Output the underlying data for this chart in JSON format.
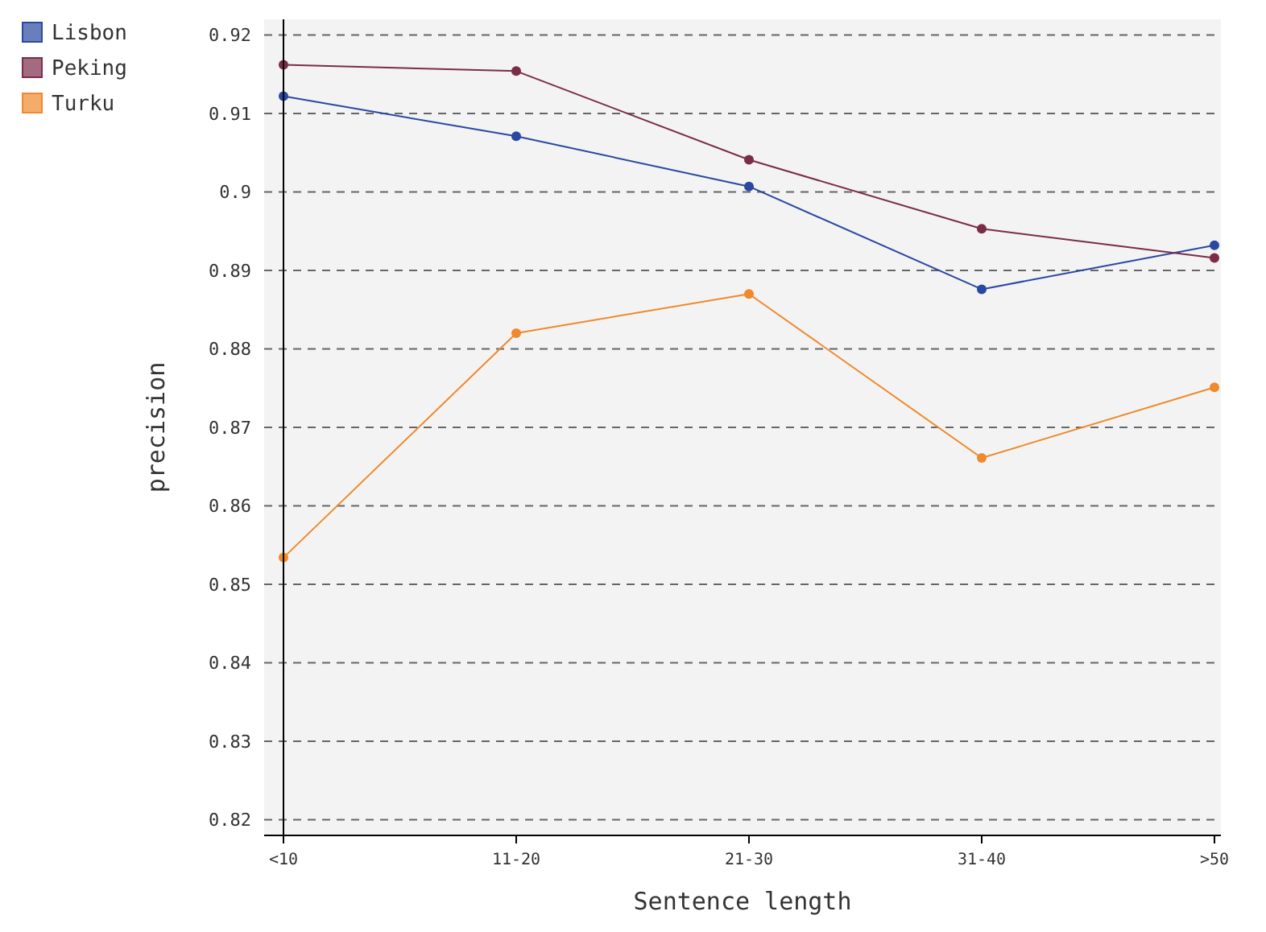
{
  "chart_data": {
    "type": "line",
    "xlabel": "Sentence length",
    "ylabel": "precision",
    "categories": [
      "<10",
      "11-20",
      "21-30",
      "31-40",
      ">50"
    ],
    "ylim": [
      0.818,
      0.922
    ],
    "yticks": [
      0.82,
      0.83,
      0.84,
      0.85,
      0.86,
      0.87,
      0.88,
      0.89,
      0.9,
      0.91,
      0.92
    ],
    "grid": "y",
    "ref_lines": [
      {
        "axis": "x",
        "value": "<10",
        "color": "#000000"
      }
    ],
    "legend": "top left",
    "marker": "circle",
    "line_style": "solid",
    "series": [
      {
        "name": "Lisbon",
        "color": "#2a48a0",
        "values": [
          0.9122,
          0.9071,
          0.9007,
          0.8876,
          0.8932
        ]
      },
      {
        "name": "Peking",
        "color": "#7b2c48",
        "values": [
          0.9162,
          0.9154,
          0.9041,
          0.8953,
          0.8916
        ]
      },
      {
        "name": "Turku",
        "color": "#f0892c",
        "values": [
          0.8534,
          0.882,
          0.887,
          0.8661,
          0.8751
        ]
      }
    ]
  }
}
